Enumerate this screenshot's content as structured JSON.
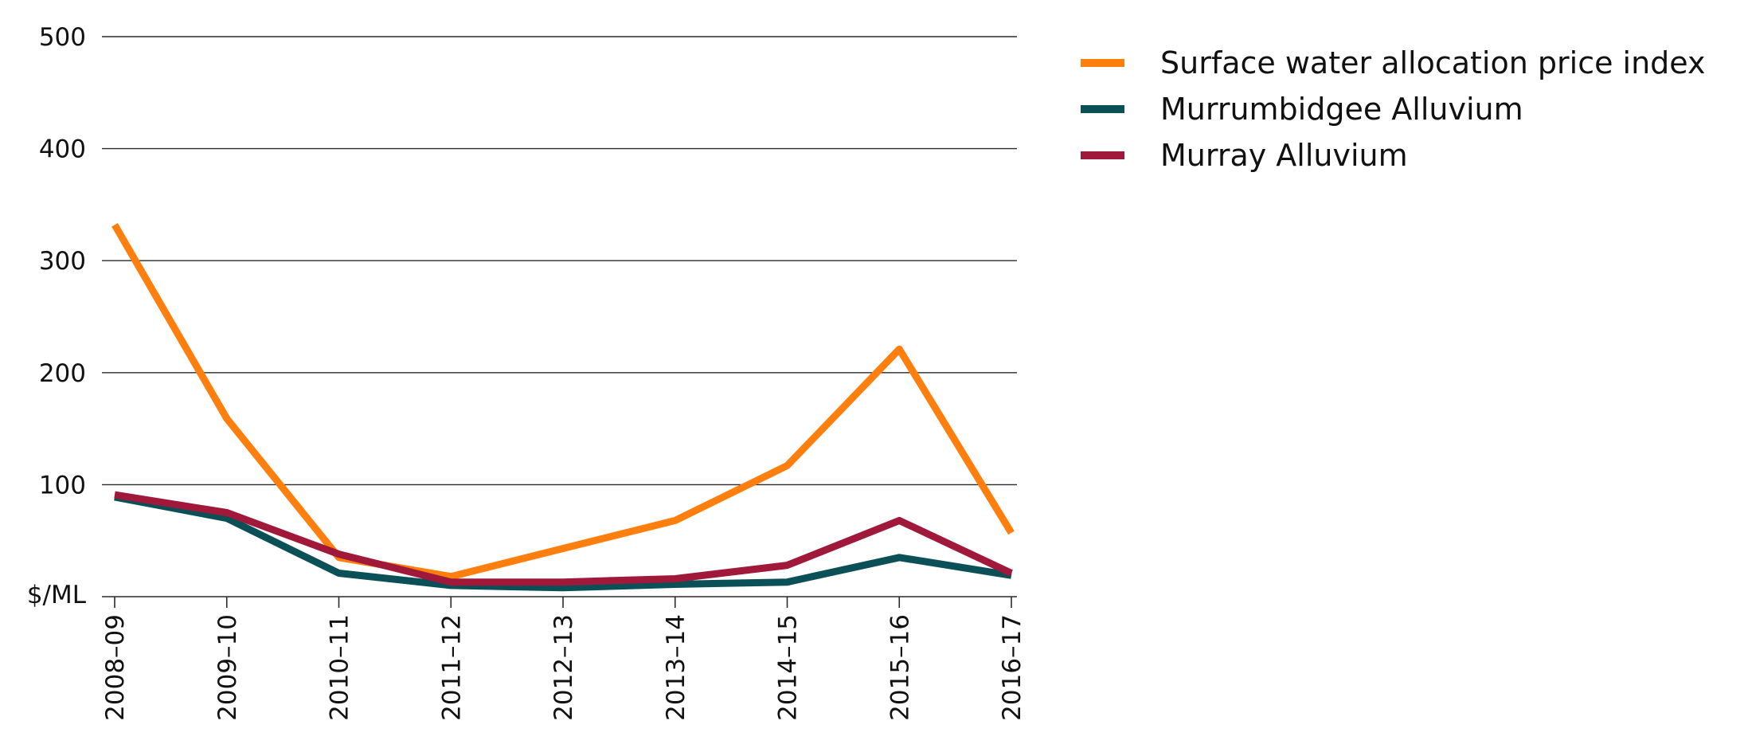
{
  "chart_data": {
    "type": "line",
    "title": "",
    "xlabel": "",
    "ylabel": "$/ML",
    "ylim": [
      0,
      500
    ],
    "y_ticks": [
      "500",
      "400",
      "300",
      "200",
      "100"
    ],
    "y_tick_values": [
      500,
      400,
      300,
      200,
      100
    ],
    "grid": true,
    "legend_position": "top-right",
    "categories": [
      "2008–09",
      "2009–10",
      "2010–11",
      "2011–12",
      "2012–13",
      "2013–14",
      "2014–15",
      "2015–16",
      "2016–17"
    ],
    "series": [
      {
        "name": "Surface water allocation price index",
        "color": "#FF7F0E",
        "values": [
          332,
          159,
          35,
          18,
          43,
          68,
          117,
          221,
          57
        ]
      },
      {
        "name": "Murrumbidgee Alluvium",
        "color": "#0B4F57",
        "values": [
          89,
          70,
          21,
          10,
          8,
          11,
          13,
          35,
          19
        ]
      },
      {
        "name": "Murray Alluvium",
        "color": "#A0183A",
        "values": [
          91,
          75,
          38,
          13,
          13,
          16,
          28,
          68,
          21
        ]
      }
    ]
  }
}
